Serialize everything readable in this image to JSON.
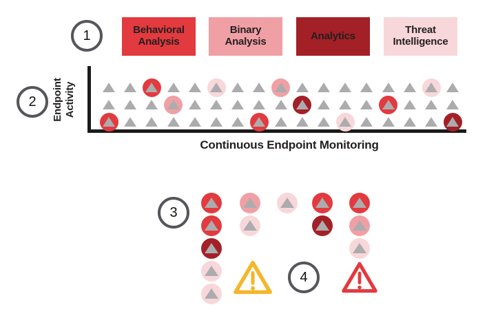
{
  "palette": {
    "behavioral": "#E23A3E",
    "binary": "#F0A0A5",
    "analytics": "#A32026",
    "threat": "#F8D7DA",
    "event_gray": "#ACACAE",
    "step_ring": "#54565B",
    "axis_black": "#1A1A1A",
    "alert_yellow": "#F4B62A",
    "alert_red": "#E23A3E"
  },
  "steps": {
    "one": "1",
    "two": "2",
    "three": "3",
    "four": "4"
  },
  "legend": {
    "items": [
      {
        "label": "Behavioral\nAnalysis",
        "category": "behavioral"
      },
      {
        "label": "Binary\nAnalysis",
        "category": "binary"
      },
      {
        "label": "Analytics",
        "category": "analytics"
      },
      {
        "label": "Threat\nIntelligence",
        "category": "threat"
      }
    ]
  },
  "chart": {
    "y_axis_label": "Endpoint\nActivity",
    "x_axis_label": "Continuous Endpoint Monitoring",
    "grid": {
      "rows": 3,
      "columns": 17
    },
    "highlights": [
      {
        "row": 0,
        "col": 2,
        "category": "behavioral"
      },
      {
        "row": 0,
        "col": 5,
        "category": "threat"
      },
      {
        "row": 0,
        "col": 8,
        "category": "binary"
      },
      {
        "row": 0,
        "col": 15,
        "category": "threat"
      },
      {
        "row": 1,
        "col": 3,
        "category": "binary"
      },
      {
        "row": 1,
        "col": 9,
        "category": "analytics"
      },
      {
        "row": 1,
        "col": 13,
        "category": "behavioral"
      },
      {
        "row": 2,
        "col": 0,
        "category": "behavioral"
      },
      {
        "row": 2,
        "col": 7,
        "category": "behavioral"
      },
      {
        "row": 2,
        "col": 11,
        "category": "threat"
      },
      {
        "row": 2,
        "col": 16,
        "category": "analytics"
      }
    ]
  },
  "groups": {
    "columns": [
      {
        "events": [
          "behavioral",
          "behavioral",
          "analytics",
          "threat",
          "threat"
        ]
      },
      {
        "events": [
          "binary",
          "threat"
        ]
      },
      {
        "events": [
          "threat"
        ]
      },
      {
        "events": [
          "behavioral",
          "analytics"
        ]
      },
      {
        "events": [
          "behavioral",
          "binary",
          "threat"
        ]
      }
    ]
  },
  "alerts": {
    "items": [
      {
        "name": "warning-medium-icon",
        "color_key": "alert_yellow"
      },
      {
        "name": "warning-high-icon",
        "color_key": "alert_red"
      }
    ]
  }
}
